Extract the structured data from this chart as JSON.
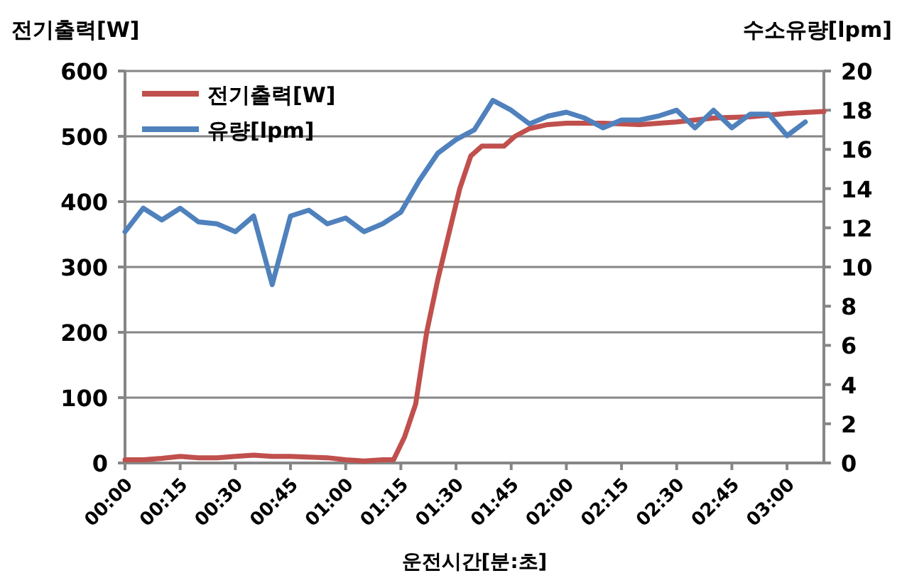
{
  "chart_data": {
    "type": "line",
    "xlabel": "운전시간[분:초]",
    "ylabel": "전기출력[W]",
    "y2label": "수소유량[lpm]",
    "xlim": [
      0,
      3.167
    ],
    "xticks": [
      {
        "value": 0,
        "label": "00:00"
      },
      {
        "value": 0.25,
        "label": "00:15"
      },
      {
        "value": 0.5,
        "label": "00:30"
      },
      {
        "value": 0.75,
        "label": "00:45"
      },
      {
        "value": 1,
        "label": "01:00"
      },
      {
        "value": 1.25,
        "label": "01:15"
      },
      {
        "value": 1.5,
        "label": "01:30"
      },
      {
        "value": 1.75,
        "label": "01:45"
      },
      {
        "value": 2,
        "label": "02:00"
      },
      {
        "value": 2.25,
        "label": "02:15"
      },
      {
        "value": 2.5,
        "label": "02:30"
      },
      {
        "value": 2.75,
        "label": "02:45"
      },
      {
        "value": 3,
        "label": "03:00"
      }
    ],
    "ylim": [
      0,
      600
    ],
    "yticks": [
      0,
      100,
      200,
      300,
      400,
      500,
      600
    ],
    "y2lim": [
      0,
      20
    ],
    "y2ticks": [
      0,
      2,
      4,
      6,
      8,
      10,
      12,
      14,
      16,
      18,
      20
    ],
    "grid": "y",
    "legend": "top left",
    "marker": "none",
    "line_style": "solid",
    "series": [
      {
        "name": "전기출력[W]",
        "color": "#c0504d",
        "x": [
          0,
          0.083,
          0.167,
          0.25,
          0.333,
          0.417,
          0.5,
          0.583,
          0.667,
          0.75,
          0.833,
          0.917,
          1,
          1.083,
          1.167,
          1.217,
          1.267,
          1.317,
          1.367,
          1.417,
          1.467,
          1.517,
          1.567,
          1.617,
          1.717,
          1.767,
          1.833,
          1.917,
          2,
          2.167,
          2.333,
          2.5,
          2.667,
          2.833,
          3,
          3.167
        ],
        "values": [
          5,
          5,
          7,
          10,
          8,
          8,
          10,
          12,
          10,
          10,
          9,
          8,
          5,
          3,
          5,
          5,
          40,
          90,
          200,
          280,
          350,
          420,
          470,
          485,
          485,
          500,
          512,
          518,
          520,
          520,
          518,
          522,
          528,
          530,
          535,
          538
        ]
      },
      {
        "name": "유량[lpm]",
        "color": "#4f81bd",
        "axis": "y2",
        "x": [
          0,
          0.083,
          0.167,
          0.25,
          0.333,
          0.417,
          0.5,
          0.583,
          0.667,
          0.75,
          0.833,
          0.917,
          1,
          1.083,
          1.167,
          1.25,
          1.333,
          1.417,
          1.5,
          1.583,
          1.667,
          1.75,
          1.833,
          1.917,
          2,
          2.083,
          2.167,
          2.25,
          2.333,
          2.417,
          2.5,
          2.583,
          2.667,
          2.75,
          2.833,
          2.917,
          3,
          3.083
        ],
        "values": [
          11.8,
          13,
          12.4,
          13,
          12.3,
          12.2,
          11.8,
          12.6,
          9.1,
          12.6,
          12.9,
          12.2,
          12.5,
          11.8,
          12.2,
          12.8,
          14.4,
          15.8,
          16.5,
          17,
          18.5,
          18,
          17.3,
          17.7,
          17.9,
          17.6,
          17.1,
          17.5,
          17.5,
          17.7,
          18,
          17.1,
          18,
          17.1,
          17.8,
          17.8,
          16.7,
          17.4
        ]
      }
    ]
  }
}
